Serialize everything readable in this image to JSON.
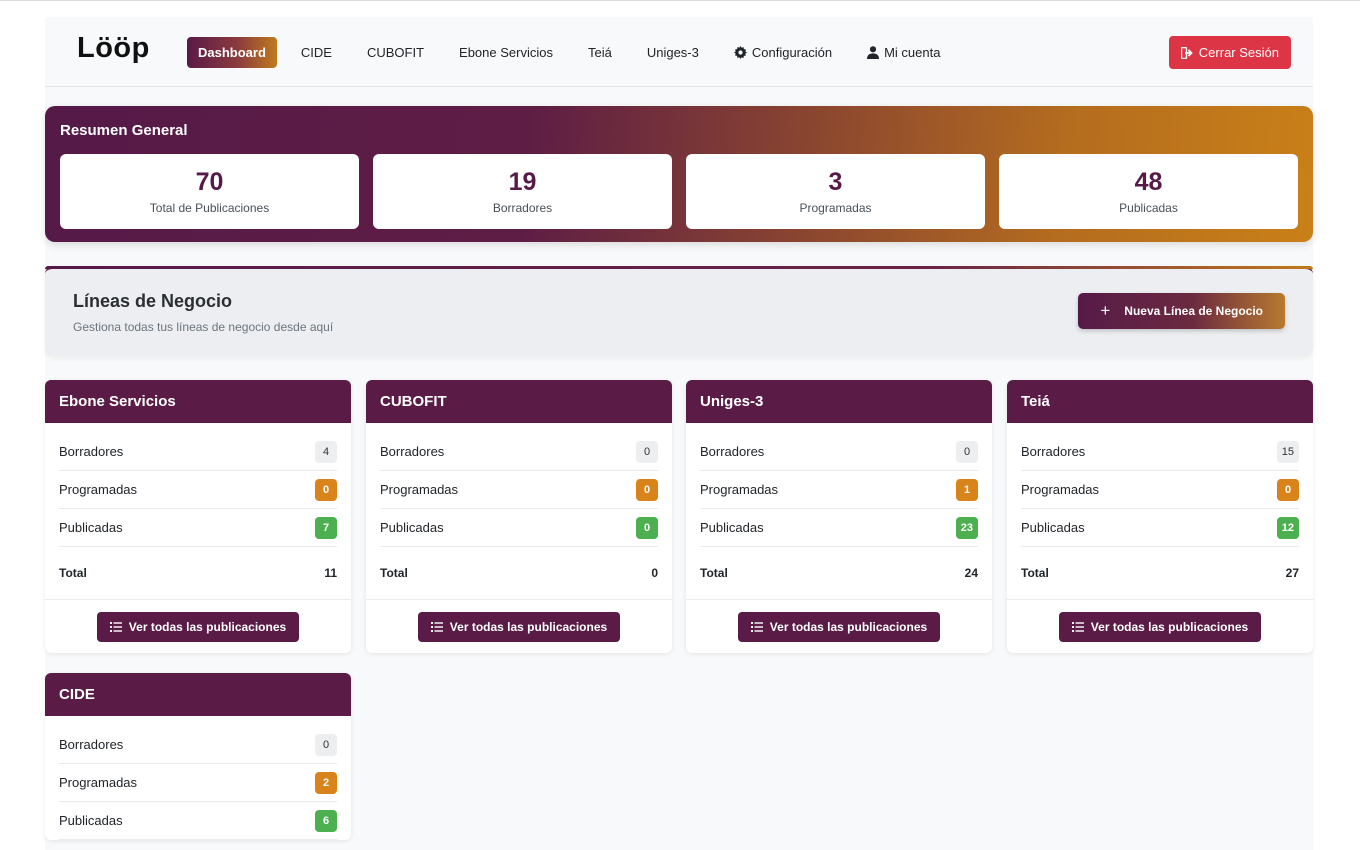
{
  "brand": "Lööp",
  "nav": {
    "items": [
      {
        "label": "Dashboard",
        "active": true
      },
      {
        "label": "CIDE"
      },
      {
        "label": "CUBOFIT"
      },
      {
        "label": "Ebone Servicios"
      },
      {
        "label": "Teiá"
      },
      {
        "label": "Uniges-3"
      },
      {
        "label": "Configuración",
        "icon": "gear-icon"
      },
      {
        "label": "Mi cuenta",
        "icon": "user-icon"
      }
    ],
    "logout_label": "Cerrar Sesión"
  },
  "summary": {
    "title": "Resumen General",
    "stats": [
      {
        "value": "70",
        "label": "Total de Publicaciones"
      },
      {
        "value": "19",
        "label": "Borradores"
      },
      {
        "value": "3",
        "label": "Programadas"
      },
      {
        "value": "48",
        "label": "Publicadas"
      }
    ]
  },
  "business_lines": {
    "title": "Líneas de Negocio",
    "subtitle": "Gestiona todas tus líneas de negocio desde aquí",
    "new_button_label": "Nueva Línea de Negocio"
  },
  "row_labels": {
    "drafts": "Borradores",
    "scheduled": "Programadas",
    "published": "Publicadas",
    "total": "Total"
  },
  "view_all_label": "Ver todas las publicaciones",
  "cards": [
    {
      "name": "Ebone Servicios",
      "drafts": "4",
      "scheduled": "0",
      "published": "7",
      "total": "11"
    },
    {
      "name": "CUBOFIT",
      "drafts": "0",
      "scheduled": "0",
      "published": "0",
      "total": "0"
    },
    {
      "name": "Uniges-3",
      "drafts": "0",
      "scheduled": "1",
      "published": "23",
      "total": "24"
    },
    {
      "name": "Teiá",
      "drafts": "15",
      "scheduled": "0",
      "published": "12",
      "total": "27"
    },
    {
      "name": "CIDE",
      "drafts": "0",
      "scheduled": "2",
      "published": "6",
      "total": ""
    }
  ],
  "colors": {
    "brand_purple": "#5a1c46",
    "accent_orange": "#d9841a",
    "success_green": "#4caf50",
    "danger_red": "#dc3545"
  }
}
